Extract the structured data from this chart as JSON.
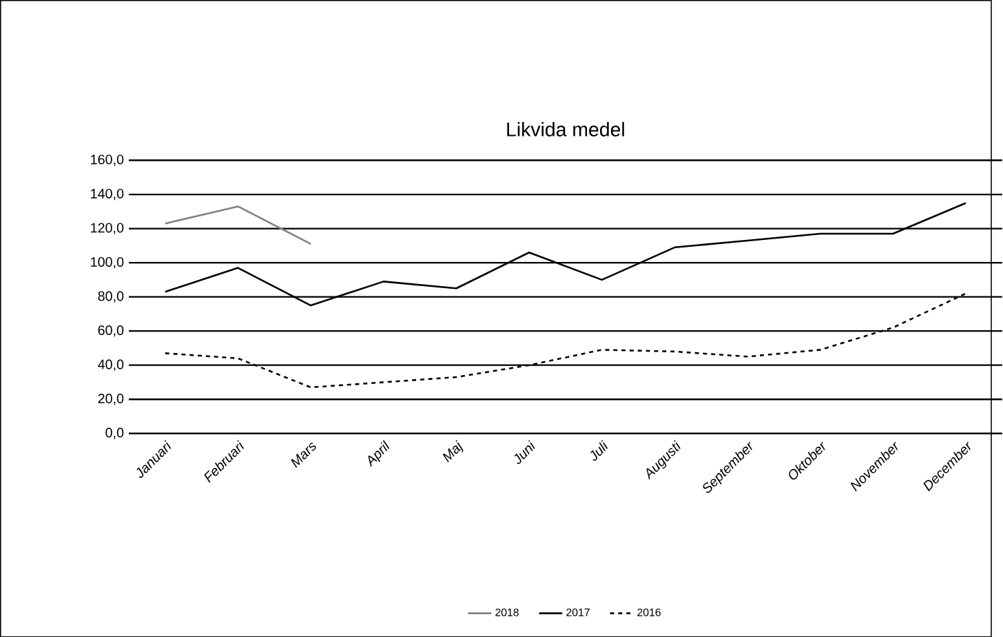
{
  "chart_data": {
    "type": "line",
    "title": "Likvida medel",
    "categories": [
      "Januari",
      "Februari",
      "Mars",
      "April",
      "Maj",
      "Juni",
      "Juli",
      "Augusti",
      "September",
      "Oktober",
      "November",
      "December"
    ],
    "series": [
      {
        "name": "2018",
        "color": "#808080",
        "line_style": "solid",
        "values": [
          123,
          133,
          111,
          null,
          null,
          null,
          null,
          null,
          null,
          null,
          null,
          null
        ]
      },
      {
        "name": "2017",
        "color": "#000000",
        "line_style": "solid",
        "values": [
          83,
          97,
          75,
          89,
          85,
          106,
          90,
          109,
          113,
          117,
          117,
          135
        ]
      },
      {
        "name": "2016",
        "color": "#000000",
        "line_style": "dashed",
        "values": [
          47,
          44,
          27,
          30,
          33,
          40,
          49,
          48,
          45,
          49,
          62,
          82
        ]
      }
    ],
    "ylim": [
      0,
      160
    ],
    "yticks": [
      {
        "value": 0,
        "label": "0,0"
      },
      {
        "value": 20,
        "label": "20,0"
      },
      {
        "value": 40,
        "label": "40,0"
      },
      {
        "value": 60,
        "label": "60,0"
      },
      {
        "value": 80,
        "label": "80,0"
      },
      {
        "value": 100,
        "label": "100,0"
      },
      {
        "value": 120,
        "label": "120,0"
      },
      {
        "value": 140,
        "label": "140,0"
      },
      {
        "value": 160,
        "label": "160,0"
      }
    ],
    "grid": "y",
    "legend": "bottom",
    "marker": "none"
  }
}
